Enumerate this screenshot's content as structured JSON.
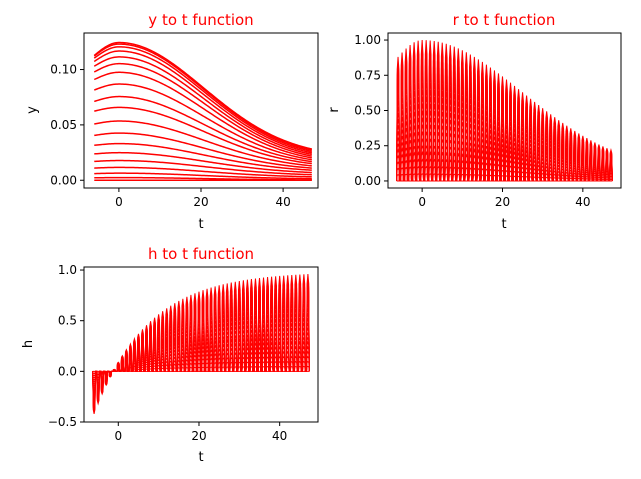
{
  "figure": {
    "background": "#ffffff",
    "line_color": "#ff0000",
    "title_color": "#ff0000"
  },
  "chart_data": [
    {
      "type": "line",
      "title": "y to t function",
      "xlabel": "t",
      "ylabel": "y",
      "xlim": [
        -8.5,
        48.5
      ],
      "ylim": [
        -0.007,
        0.133
      ],
      "xticks": [
        0,
        20,
        40
      ],
      "yticks": [
        0.0,
        0.05,
        0.1
      ],
      "ytick_labels": [
        "0.00",
        "0.05",
        "0.10"
      ],
      "x_range": [
        -6,
        47
      ],
      "peak_t": 0,
      "curve_peaks": [
        0.0,
        0.0024,
        0.0064,
        0.0116,
        0.0178,
        0.0249,
        0.0331,
        0.0426,
        0.0535,
        0.0658,
        0.0756,
        0.0869,
        0.0975,
        0.1053,
        0.1114,
        0.1167,
        0.1205,
        0.123,
        0.1244
      ],
      "curve_ends": [
        0.0,
        0.0003,
        0.0014,
        0.0031,
        0.005,
        0.007,
        0.0091,
        0.011,
        0.013,
        0.015,
        0.0168,
        0.0185,
        0.0202,
        0.0218,
        0.0233,
        0.0247,
        0.026,
        0.0272,
        0.0282
      ],
      "curve_starts": [
        0.0,
        0.0022,
        0.006,
        0.011,
        0.017,
        0.0238,
        0.0316,
        0.0405,
        0.0508,
        0.0624,
        0.0712,
        0.0815,
        0.091,
        0.0978,
        0.103,
        0.1073,
        0.1103,
        0.1122,
        0.1127
      ]
    },
    {
      "type": "line",
      "title": "r to t function",
      "xlabel": "t",
      "ylabel": "r",
      "xlim": [
        -8.5,
        49.5
      ],
      "ylim": [
        -0.05,
        1.05
      ],
      "xticks": [
        0,
        20,
        40
      ],
      "yticks": [
        0.0,
        0.25,
        0.5,
        0.75,
        1.0
      ],
      "ytick_labels": [
        "0.00",
        "0.25",
        "0.50",
        "0.75",
        "1.00"
      ],
      "x_range": [
        -6,
        47
      ],
      "envelope": {
        "peak_t": 0,
        "peak": 1.0,
        "start": 0.88,
        "end": 0.22
      },
      "levels": [
        0.0,
        0.05,
        0.1,
        0.15,
        0.2,
        0.25,
        0.3,
        0.35,
        0.4,
        0.45,
        0.5,
        0.55,
        0.6,
        0.65,
        0.7,
        0.75,
        0.8,
        0.85,
        0.9,
        0.95,
        1.0
      ],
      "pulse_spacing": 1.0,
      "pulse_width": 0.7
    },
    {
      "type": "line",
      "title": "h to t function",
      "xlabel": "t",
      "ylabel": "h",
      "xlim": [
        -8.5,
        49.5
      ],
      "ylim": [
        -0.5,
        1.03
      ],
      "xticks": [
        0,
        20,
        40
      ],
      "yticks": [
        -0.5,
        0.0,
        0.5,
        1.0
      ],
      "ytick_labels": [
        "−0.5",
        "0.0",
        "0.5",
        "1.0"
      ],
      "x_range": [
        -6,
        47
      ],
      "envelope": {
        "start": -0.42,
        "zero_cross_t": 2,
        "end": 0.96,
        "rate": 0.075
      },
      "levels": [
        0.0,
        0.05,
        0.1,
        0.15,
        0.2,
        0.25,
        0.3,
        0.35,
        0.4,
        0.45,
        0.5,
        0.55,
        0.6,
        0.65,
        0.7,
        0.75,
        0.8,
        0.85,
        0.9,
        0.95,
        1.0
      ],
      "pulse_spacing": 1.0,
      "pulse_width": 0.7
    }
  ]
}
